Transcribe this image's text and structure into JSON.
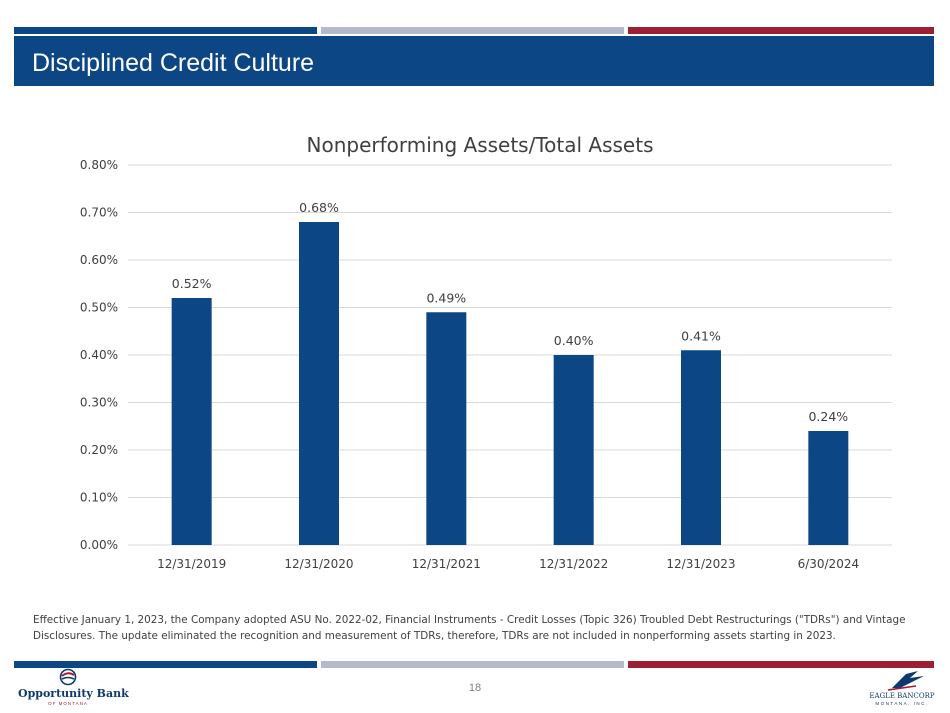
{
  "colors": {
    "navy": "#0d4685",
    "grey": "#b4bacb",
    "red": "#9c1f34",
    "bar": "#0d4685",
    "grid": "#d9d9d9"
  },
  "header": {
    "title": "Disciplined Credit Culture"
  },
  "chart_data": {
    "type": "bar",
    "title": "Nonperforming Assets/Total Assets",
    "categories": [
      "12/31/2019",
      "12/31/2020",
      "12/31/2021",
      "12/31/2022",
      "12/31/2023",
      "6/30/2024"
    ],
    "values": [
      0.52,
      0.68,
      0.49,
      0.4,
      0.41,
      0.24
    ],
    "data_labels": [
      "0.52%",
      "0.68%",
      "0.49%",
      "0.40%",
      "0.41%",
      "0.24%"
    ],
    "y_ticks": [
      0,
      0.1,
      0.2,
      0.3,
      0.4,
      0.5,
      0.6,
      0.7,
      0.8
    ],
    "y_tick_labels": [
      "0.00%",
      "0.10%",
      "0.20%",
      "0.30%",
      "0.40%",
      "0.50%",
      "0.60%",
      "0.70%",
      "0.80%"
    ],
    "ylim": [
      0,
      0.8
    ],
    "xlabel": "",
    "ylabel": "",
    "grid": true,
    "legend": "none"
  },
  "footnote": "Effective January 1, 2023, the Company adopted ASU No. 2022-02, Financial Instruments - Credit Losses (Topic 326) Troubled Debt Restructurings (\"TDRs\") and Vintage Disclosures. The update eliminated the recognition and measurement of TDRs, therefore, TDRs are not included in nonperforming assets starting in 2023.",
  "footer": {
    "page_number": "18",
    "left_logo": {
      "name": "Opportunity Bank",
      "sub": "OF MONTANA",
      "icon": "opportunity-bank-logo-icon"
    },
    "right_logo": {
      "name": "EAGLE BANCORP",
      "sub": "MONTANA, INC.",
      "icon": "eagle-logo-icon"
    }
  }
}
